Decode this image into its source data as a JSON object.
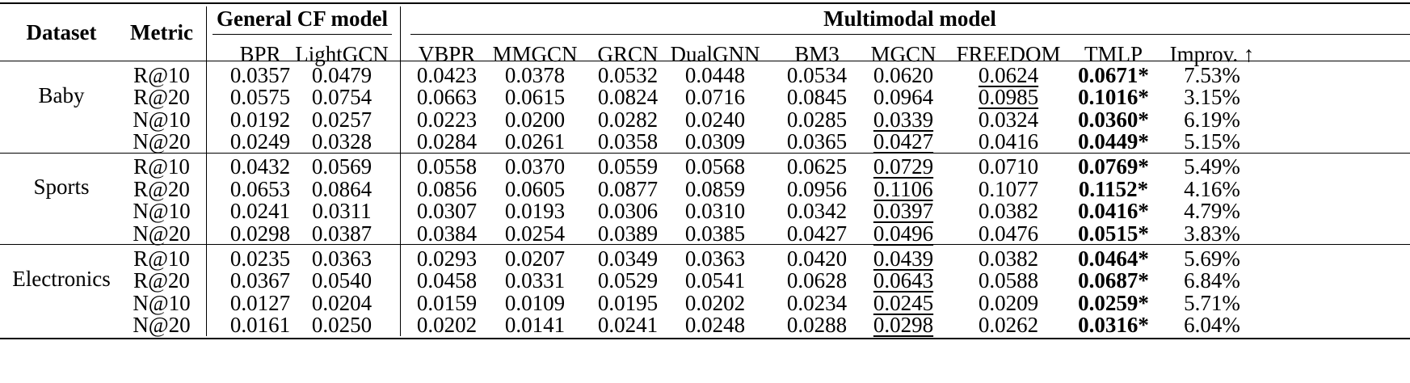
{
  "table": {
    "headers": {
      "dataset": "Dataset",
      "metric": "Metric",
      "group_general": "General CF model",
      "group_multimodal": "Multimodal model",
      "models": [
        "BPR",
        "LightGCN",
        "VBPR",
        "MMGCN",
        "GRCN",
        "DualGNN",
        "BM3",
        "MGCN",
        "FREEDOM",
        "TMLP",
        "Improv. ↑"
      ]
    },
    "groups": [
      {
        "dataset": "Baby",
        "rows": [
          {
            "metric": "R@10",
            "values": [
              "0.0357",
              "0.0479",
              "0.0423",
              "0.0378",
              "0.0532",
              "0.0448",
              "0.0534",
              "0.0620",
              "0.0624",
              "0.0671*",
              "7.53%"
            ],
            "second_best_col": 8
          },
          {
            "metric": "R@20",
            "values": [
              "0.0575",
              "0.0754",
              "0.0663",
              "0.0615",
              "0.0824",
              "0.0716",
              "0.0845",
              "0.0964",
              "0.0985",
              "0.1016*",
              "3.15%"
            ],
            "second_best_col": 8
          },
          {
            "metric": "N@10",
            "values": [
              "0.0192",
              "0.0257",
              "0.0223",
              "0.0200",
              "0.0282",
              "0.0240",
              "0.0285",
              "0.0339",
              "0.0324",
              "0.0360*",
              "6.19%"
            ],
            "second_best_col": 7
          },
          {
            "metric": "N@20",
            "values": [
              "0.0249",
              "0.0328",
              "0.0284",
              "0.0261",
              "0.0358",
              "0.0309",
              "0.0365",
              "0.0427",
              "0.0416",
              "0.0449*",
              "5.15%"
            ],
            "second_best_col": 7
          }
        ]
      },
      {
        "dataset": "Sports",
        "rows": [
          {
            "metric": "R@10",
            "values": [
              "0.0432",
              "0.0569",
              "0.0558",
              "0.0370",
              "0.0559",
              "0.0568",
              "0.0625",
              "0.0729",
              "0.0710",
              "0.0769*",
              "5.49%"
            ],
            "second_best_col": 7
          },
          {
            "metric": "R@20",
            "values": [
              "0.0653",
              "0.0864",
              "0.0856",
              "0.0605",
              "0.0877",
              "0.0859",
              "0.0956",
              "0.1106",
              "0.1077",
              "0.1152*",
              "4.16%"
            ],
            "second_best_col": 7
          },
          {
            "metric": "N@10",
            "values": [
              "0.0241",
              "0.0311",
              "0.0307",
              "0.0193",
              "0.0306",
              "0.0310",
              "0.0342",
              "0.0397",
              "0.0382",
              "0.0416*",
              "4.79%"
            ],
            "second_best_col": 7
          },
          {
            "metric": "N@20",
            "values": [
              "0.0298",
              "0.0387",
              "0.0384",
              "0.0254",
              "0.0389",
              "0.0385",
              "0.0427",
              "0.0496",
              "0.0476",
              "0.0515*",
              "3.83%"
            ],
            "second_best_col": 7
          }
        ]
      },
      {
        "dataset": "Electronics",
        "rows": [
          {
            "metric": "R@10",
            "values": [
              "0.0235",
              "0.0363",
              "0.0293",
              "0.0207",
              "0.0349",
              "0.0363",
              "0.0420",
              "0.0439",
              "0.0382",
              "0.0464*",
              "5.69%"
            ],
            "second_best_col": 7
          },
          {
            "metric": "R@20",
            "values": [
              "0.0367",
              "0.0540",
              "0.0458",
              "0.0331",
              "0.0529",
              "0.0541",
              "0.0628",
              "0.0643",
              "0.0588",
              "0.0687*",
              "6.84%"
            ],
            "second_best_col": 7
          },
          {
            "metric": "N@10",
            "values": [
              "0.0127",
              "0.0204",
              "0.0159",
              "0.0109",
              "0.0195",
              "0.0202",
              "0.0234",
              "0.0245",
              "0.0209",
              "0.0259*",
              "5.71%"
            ],
            "second_best_col": 7
          },
          {
            "metric": "N@20",
            "values": [
              "0.0161",
              "0.0250",
              "0.0202",
              "0.0141",
              "0.0241",
              "0.0248",
              "0.0288",
              "0.0298",
              "0.0262",
              "0.0316*",
              "6.04%"
            ],
            "second_best_col": 7
          }
        ]
      }
    ],
    "best_col": 9
  }
}
